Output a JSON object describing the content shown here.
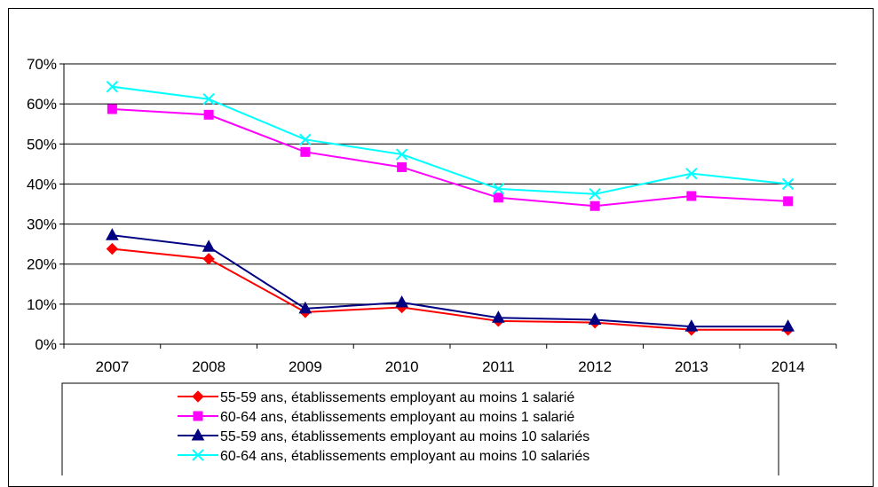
{
  "chart_data": {
    "type": "line",
    "categories": [
      "2007",
      "2008",
      "2009",
      "2010",
      "2011",
      "2012",
      "2013",
      "2014"
    ],
    "ylim": [
      0,
      70
    ],
    "yticks": [
      0,
      10,
      20,
      30,
      40,
      50,
      60,
      70
    ],
    "ytick_labels": [
      "0%",
      "10%",
      "20%",
      "30%",
      "40%",
      "50%",
      "60%",
      "70%"
    ],
    "grid": true,
    "legend_position": "bottom",
    "series": [
      {
        "name": "55-59 ans, établissements employant au moins 1 salarié",
        "color": "#ff0000",
        "marker": "diamond",
        "values": [
          23.8,
          21.3,
          8.0,
          9.2,
          5.8,
          5.4,
          3.6,
          3.6
        ]
      },
      {
        "name": "60-64 ans, établissements employant au moins 1 salarié",
        "color": "#ff00ff",
        "marker": "square",
        "values": [
          58.7,
          57.3,
          48.0,
          44.2,
          36.6,
          34.5,
          37.0,
          35.7
        ]
      },
      {
        "name": "55-59 ans, établissements employant au moins 10 salariés",
        "color": "#000080",
        "marker": "triangle",
        "values": [
          27.2,
          24.3,
          8.9,
          10.4,
          6.6,
          6.1,
          4.4,
          4.4
        ]
      },
      {
        "name": "60-64 ans, établissements employant au moins 10 salariés",
        "color": "#00ffff",
        "marker": "x",
        "values": [
          64.3,
          61.2,
          51.1,
          47.4,
          38.8,
          37.5,
          42.6,
          40.0
        ]
      }
    ]
  }
}
